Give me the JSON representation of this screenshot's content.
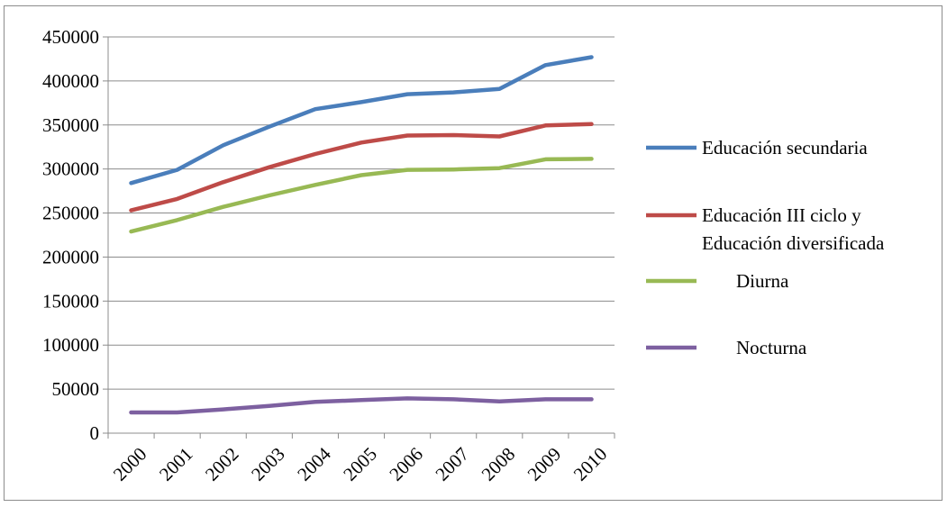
{
  "chart_data": {
    "type": "line",
    "title": "",
    "xlabel": "",
    "ylabel": "",
    "x": [
      "2000",
      "2001",
      "2002",
      "2003",
      "2004",
      "2005",
      "2006",
      "2007",
      "2008",
      "2009",
      "2010"
    ],
    "ylim": [
      0,
      450000
    ],
    "yticks": [
      "0",
      "50000",
      "100000",
      "150000",
      "200000",
      "250000",
      "300000",
      "350000",
      "400000",
      "450000"
    ],
    "grid": "horizontal",
    "legend": "right",
    "series": [
      {
        "name": "Educación secundaria",
        "color": "#4a7ebb",
        "values": [
          284000,
          299000,
          327000,
          348000,
          368000,
          376000,
          385000,
          387000,
          391000,
          418000,
          427000
        ]
      },
      {
        "name": "Educación III ciclo y Educación diversificada",
        "name_lines": [
          "Educación III ciclo y",
          "Educación diversificada"
        ],
        "color": "#be4b48",
        "values": [
          253000,
          266000,
          285000,
          302000,
          317000,
          330000,
          338000,
          338500,
          337000,
          349500,
          351000
        ]
      },
      {
        "name": "Diurna",
        "color": "#98b954",
        "values": [
          229000,
          242000,
          257000,
          270000,
          282000,
          293000,
          299000,
          299500,
          301000,
          311000,
          311500
        ]
      },
      {
        "name": "Nocturna",
        "color": "#7d60a0",
        "values": [
          23500,
          23500,
          27000,
          31000,
          35500,
          37500,
          39500,
          38500,
          36000,
          38500,
          38500
        ]
      }
    ]
  }
}
